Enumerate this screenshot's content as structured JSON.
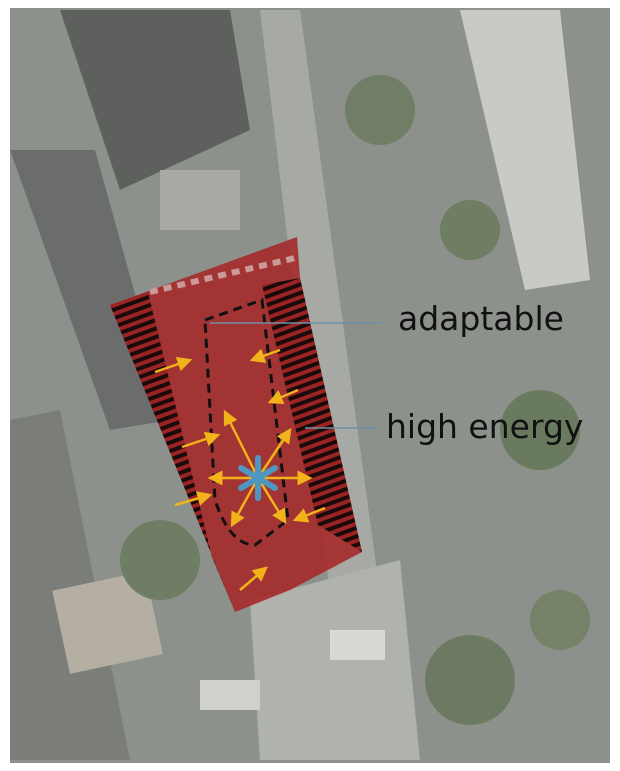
{
  "annotations": [
    {
      "label": "adaptable"
    },
    {
      "label": "high energy"
    }
  ]
}
